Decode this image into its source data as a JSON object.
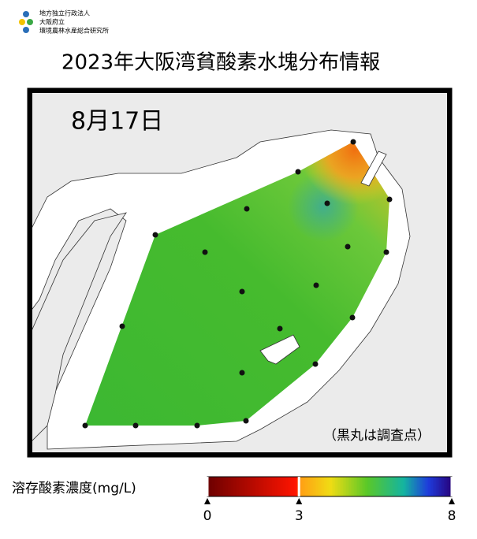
{
  "header": {
    "org": [
      "地方独立行政法人",
      "大阪府立",
      "環境農林水産総合研究所"
    ],
    "title": "2023年大阪湾貧酸素水塊分布情報"
  },
  "map": {
    "date": "8月17日",
    "note": "（黒丸は調査点）"
  },
  "colorbar": {
    "label": "溶存酸素濃度(mg/L)",
    "min": 0,
    "max": 8,
    "ticks": [
      0,
      3,
      8
    ]
  }
}
